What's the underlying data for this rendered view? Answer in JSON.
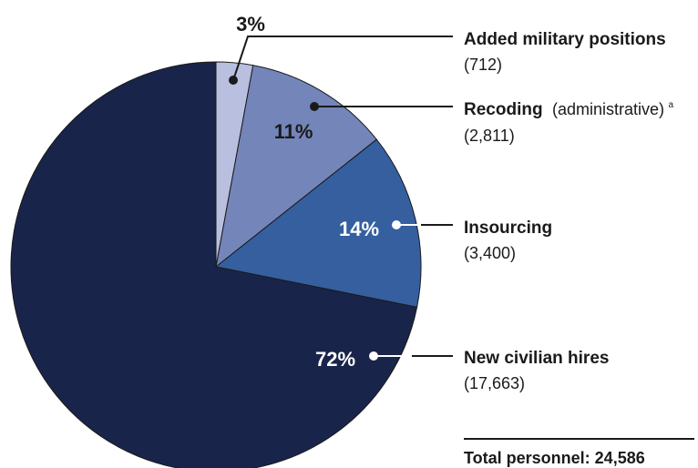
{
  "chart_data": {
    "type": "pie",
    "slices": [
      {
        "label": "Added military positions",
        "note": "",
        "value": 712,
        "value_text": "(712)",
        "percent_text": "3%",
        "color": "#b9bfdf"
      },
      {
        "label": "Recoding",
        "note": "(administrative)",
        "sup": "a",
        "value": 2811,
        "value_text": "(2,811)",
        "percent_text": "11%",
        "color": "#7485b9"
      },
      {
        "label": "Insourcing",
        "note": "",
        "value": 3400,
        "value_text": "(3,400)",
        "percent_text": "14%",
        "color": "#355f9f"
      },
      {
        "label": "New civilian hires",
        "note": "",
        "value": 17663,
        "value_text": "(17,663)",
        "percent_text": "72%",
        "color": "#19244a"
      }
    ],
    "total_text": "Total personnel: 24,586"
  }
}
